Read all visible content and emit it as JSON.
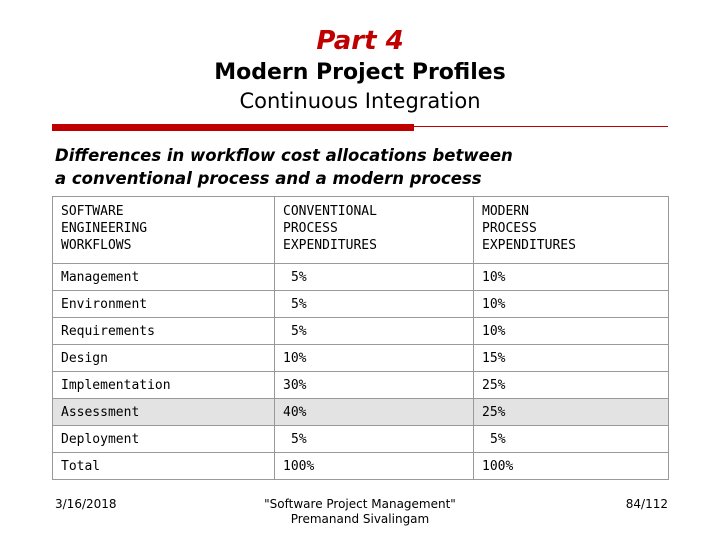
{
  "slide": {
    "part": "Part 4",
    "title": "Modern Project Profiles",
    "subtitle": "Continuous Integration",
    "heading_lines": [
      "Differences in workflow cost allocations between",
      "a conventional process and a modern process"
    ],
    "accent_color": "#c00000"
  },
  "table": {
    "headers": [
      [
        "SOFTWARE",
        "ENGINEERING",
        "WORKFLOWS"
      ],
      [
        "CONVENTIONAL",
        "PROCESS",
        "EXPENDITURES"
      ],
      [
        "MODERN",
        "PROCESS",
        "EXPENDITURES"
      ]
    ],
    "rows": [
      {
        "workflow": "Management",
        "conventional": "5%",
        "modern": "10%"
      },
      {
        "workflow": "Environment",
        "conventional": "5%",
        "modern": "10%"
      },
      {
        "workflow": "Requirements",
        "conventional": "5%",
        "modern": "10%"
      },
      {
        "workflow": "Design",
        "conventional": "10%",
        "modern": "15%"
      },
      {
        "workflow": "Implementation",
        "conventional": "30%",
        "modern": "25%"
      },
      {
        "workflow": "Assessment",
        "conventional": "40%",
        "modern": "25%"
      },
      {
        "workflow": "Deployment",
        "conventional": "5%",
        "modern": "5%"
      },
      {
        "workflow": "Total",
        "conventional": "100%",
        "modern": "100%"
      }
    ]
  },
  "footer": {
    "date": "3/16/2018",
    "center_line1": "\"Software Project Management\"",
    "center_line2": "Premanand Sivalingam",
    "page": "84/112"
  }
}
